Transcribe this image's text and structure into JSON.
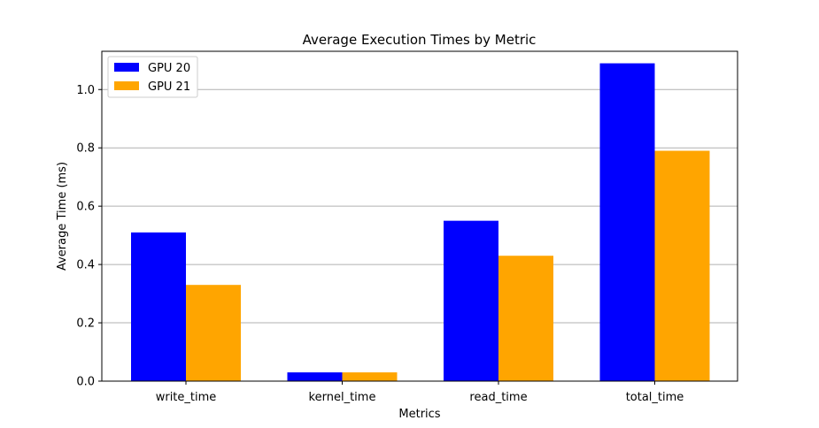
{
  "chart_data": {
    "type": "bar",
    "title": "Average Execution Times by Metric",
    "xlabel": "Metrics",
    "ylabel": "Average Time (ms)",
    "categories": [
      "write_time",
      "kernel_time",
      "read_time",
      "total_time"
    ],
    "series": [
      {
        "name": "GPU 20",
        "color": "#0000ff",
        "values": [
          0.51,
          0.03,
          0.55,
          1.09
        ]
      },
      {
        "name": "GPU 21",
        "color": "#ffa500",
        "values": [
          0.33,
          0.03,
          0.43,
          0.79
        ]
      }
    ],
    "ylim": [
      0,
      1.1312
    ],
    "yticks": [
      "0.0",
      "0.2",
      "0.4",
      "0.6",
      "0.8",
      "1.0"
    ],
    "grid": "y",
    "legend_position": "top-left"
  }
}
